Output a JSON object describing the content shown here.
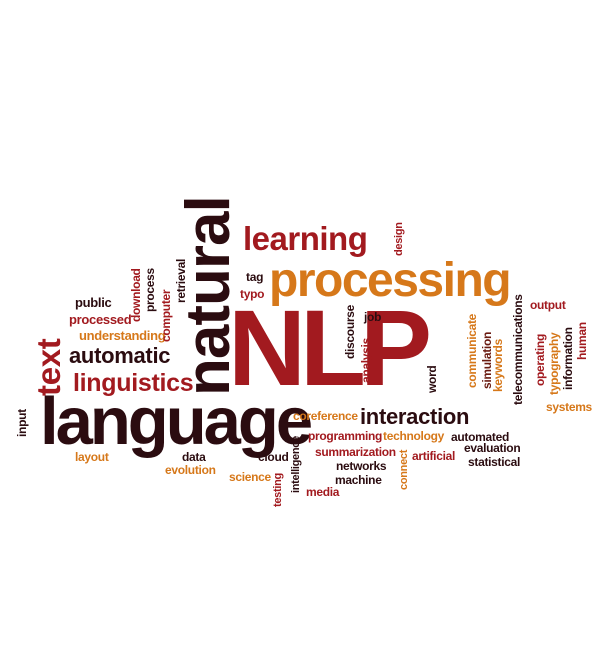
{
  "words": {
    "nlp": "NLP",
    "natural": "natural",
    "language": "language",
    "processing": "processing",
    "learning": "learning",
    "text": "text",
    "automatic": "automatic",
    "linguistics": "linguistics",
    "interaction": "interaction",
    "understanding": "understanding",
    "processed": "processed",
    "public": "public",
    "download": "download",
    "process": "process",
    "computer": "computer",
    "retrieval": "retrieval",
    "tag": "tag",
    "typo": "typo",
    "design": "design",
    "job": "job",
    "discourse": "discourse",
    "analysis": "analysis",
    "word": "word",
    "communicate": "communicate",
    "simulation": "simulation",
    "keywords": "keywords",
    "telecommunications": "telecommunications",
    "operating": "operating",
    "typography": "typography",
    "information": "information",
    "human": "human",
    "output": "output",
    "systems": "systems",
    "input": "input",
    "layout": "layout",
    "data": "data",
    "evolution": "evolution",
    "science": "science",
    "cloud": "cloud",
    "testing": "testing",
    "intelligence": "intelligence",
    "coreference": "coreference",
    "programming": "programming",
    "technology": "technology",
    "automated": "automated",
    "summarization": "summarization",
    "artificial": "artificial",
    "evaluation": "evaluation",
    "statistical": "statistical",
    "networks": "networks",
    "machine": "machine",
    "media": "media",
    "connect": "connect"
  },
  "colors": {
    "dark": "#2b0c10",
    "red": "#a21a1f",
    "orange": "#d6781a",
    "brown": "#6a1a10",
    "background": "#ffffff"
  }
}
